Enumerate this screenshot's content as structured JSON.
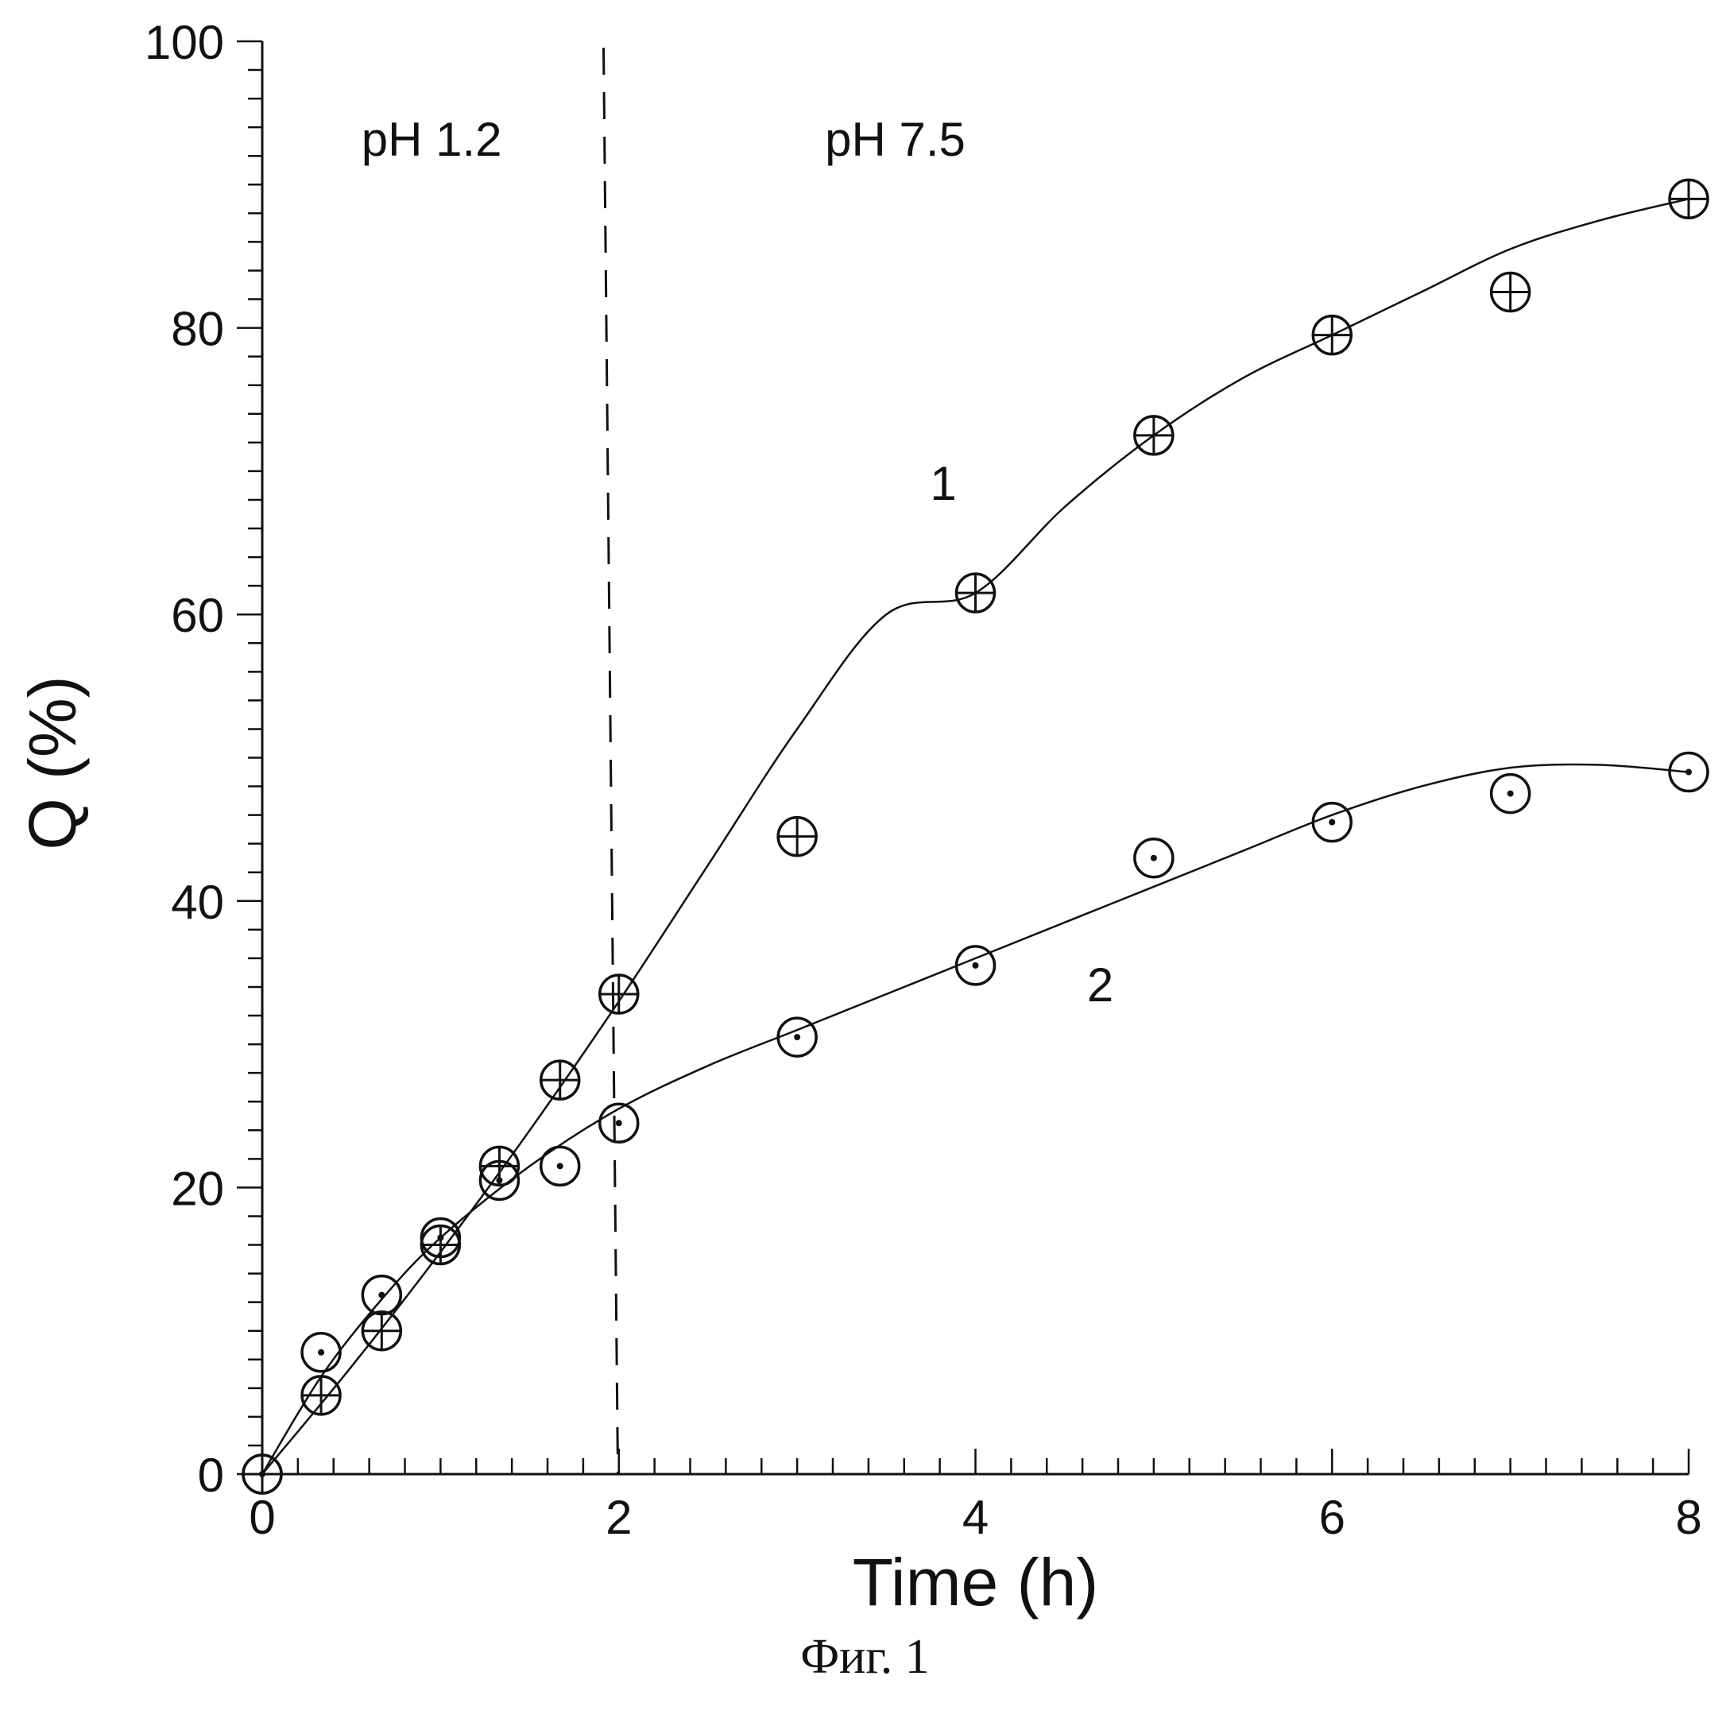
{
  "chart_data": {
    "type": "scatter",
    "xlabel": "Time (h)",
    "ylabel": "Q (%)",
    "xlim": [
      0,
      8
    ],
    "ylim": [
      0,
      100
    ],
    "x_ticks": [
      "0",
      "2",
      "4",
      "6",
      "8"
    ],
    "y_ticks": [
      "0",
      "20",
      "40",
      "60",
      "80",
      "100"
    ],
    "divider_x": 1.95,
    "regions": [
      {
        "label": "pH  1.2",
        "x": 0.95,
        "y": 92
      },
      {
        "label": "pH  7.5",
        "x": 3.55,
        "y": 92
      }
    ],
    "series": [
      {
        "name": "1",
        "marker": "circle-plus",
        "label_pos": {
          "x": 3.82,
          "y": 68
        },
        "x": [
          0,
          0.33,
          0.67,
          1.0,
          1.33,
          1.67,
          2.0,
          3.0,
          4.0,
          5.0,
          6.0,
          7.0,
          8.0
        ],
        "y": [
          0,
          5.5,
          10,
          16,
          21.5,
          27.5,
          33.5,
          44.5,
          61.5,
          72.5,
          79.5,
          82.5,
          89
        ],
        "fit": [
          [
            0,
            0
          ],
          [
            0.5,
            7.5
          ],
          [
            1.0,
            15.5
          ],
          [
            1.5,
            24
          ],
          [
            2.0,
            33
          ],
          [
            2.5,
            42.5
          ],
          [
            3.0,
            52
          ],
          [
            3.5,
            60
          ],
          [
            4.0,
            61.5
          ],
          [
            4.5,
            67.5
          ],
          [
            5.0,
            72.5
          ],
          [
            5.5,
            76.5
          ],
          [
            6.0,
            79.5
          ],
          [
            6.5,
            82.5
          ],
          [
            7.0,
            85.5
          ],
          [
            7.5,
            87.5
          ],
          [
            8.0,
            89
          ]
        ]
      },
      {
        "name": "2",
        "marker": "circle-dot",
        "label_pos": {
          "x": 4.7,
          "y": 33
        },
        "x": [
          0,
          0.33,
          0.67,
          1.0,
          1.33,
          1.67,
          2.0,
          3.0,
          4.0,
          5.0,
          6.0,
          7.0,
          8.0
        ],
        "y": [
          0,
          8.5,
          12.5,
          16.5,
          20.5,
          21.5,
          24.5,
          30.5,
          35.5,
          43,
          45.5,
          47.5,
          49
        ],
        "fit": [
          [
            0,
            0
          ],
          [
            0.33,
            6.8
          ],
          [
            0.67,
            12.2
          ],
          [
            1.0,
            16.5
          ],
          [
            1.5,
            21.5
          ],
          [
            2.0,
            25.5
          ],
          [
            2.5,
            28.5
          ],
          [
            3.0,
            31
          ],
          [
            3.5,
            33.5
          ],
          [
            4.0,
            36
          ],
          [
            4.5,
            38.5
          ],
          [
            5.0,
            41
          ],
          [
            5.5,
            43.5
          ],
          [
            6.0,
            46
          ],
          [
            6.5,
            48
          ],
          [
            7.0,
            49.3
          ],
          [
            7.5,
            49.5
          ],
          [
            8.0,
            49
          ]
        ]
      }
    ]
  },
  "caption": "Фиг. 1"
}
